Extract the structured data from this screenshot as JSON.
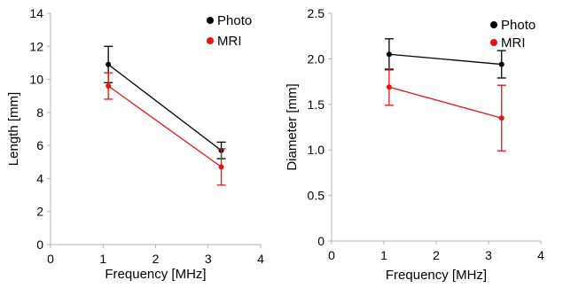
{
  "chart_data": [
    {
      "type": "line",
      "xlabel": "Frequency [MHz]",
      "ylabel": "Length [mm]",
      "xlim": [
        0,
        4
      ],
      "ylim": [
        0,
        14
      ],
      "xticks": [
        "0",
        "1",
        "2",
        "3",
        "4"
      ],
      "yticks": [
        "0",
        "2",
        "4",
        "6",
        "8",
        "10",
        "12",
        "14"
      ],
      "legend_position": "top-right",
      "grid": false,
      "series": [
        {
          "name": "Photo",
          "color": "#000000",
          "x": [
            1.1,
            3.25
          ],
          "y": [
            10.9,
            5.7
          ],
          "error": [
            1.1,
            0.5
          ]
        },
        {
          "name": "MRI",
          "color": "#ee1111",
          "x": [
            1.1,
            3.25
          ],
          "y": [
            9.6,
            4.7
          ],
          "error": [
            0.8,
            1.1
          ]
        }
      ]
    },
    {
      "type": "line",
      "xlabel": "Frequency [MHz]",
      "ylabel": "Diameter [mm]",
      "xlim": [
        0,
        4
      ],
      "ylim": [
        0,
        2.5
      ],
      "xticks": [
        "0",
        "1",
        "2",
        "3",
        "4"
      ],
      "yticks": [
        "0",
        "0.5",
        "1.0",
        "1.5",
        "2.0",
        "2.5"
      ],
      "legend_position": "top-right",
      "grid": false,
      "series": [
        {
          "name": "Photo",
          "color": "#000000",
          "x": [
            1.1,
            3.25
          ],
          "y": [
            2.05,
            1.94
          ],
          "error": [
            0.17,
            0.15
          ]
        },
        {
          "name": "MRI",
          "color": "#ee1111",
          "x": [
            1.1,
            3.25
          ],
          "y": [
            1.69,
            1.35
          ],
          "error": [
            0.2,
            0.36
          ]
        }
      ]
    }
  ]
}
